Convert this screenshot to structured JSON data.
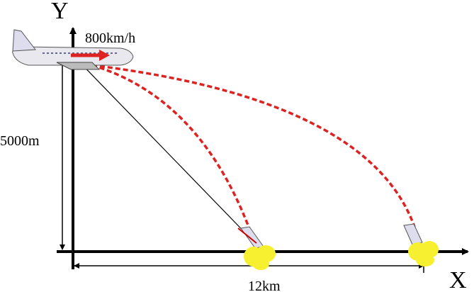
{
  "axes": {
    "y_label": "Y",
    "x_label": "X"
  },
  "labels": {
    "speed": "800km/h",
    "height": "5000m",
    "distance": "12km"
  }
}
